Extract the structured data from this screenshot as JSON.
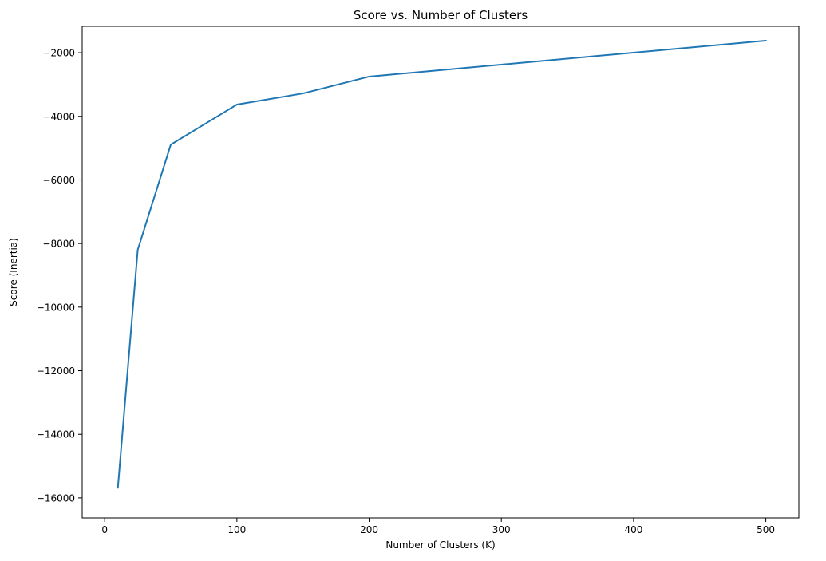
{
  "chart_data": {
    "type": "line",
    "title": "Score vs. Number of Clusters",
    "xlabel": "Number of Clusters (K)",
    "ylabel": "Score (Inertia)",
    "xlim": [
      -17,
      525
    ],
    "ylim": [
      -16630,
      -1170
    ],
    "xticks": [
      0,
      100,
      200,
      300,
      400,
      500
    ],
    "yticks": [
      -16000,
      -14000,
      -12000,
      -10000,
      -8000,
      -6000,
      -4000,
      -2000
    ],
    "grid": false,
    "legend": "none",
    "series": [
      {
        "x": [
          10,
          25,
          50,
          100,
          150,
          200,
          500
        ],
        "y": [
          -15680,
          -8200,
          -4890,
          -3630,
          -3280,
          -2750,
          -1620
        ],
        "color": "#1f77b4"
      }
    ]
  }
}
